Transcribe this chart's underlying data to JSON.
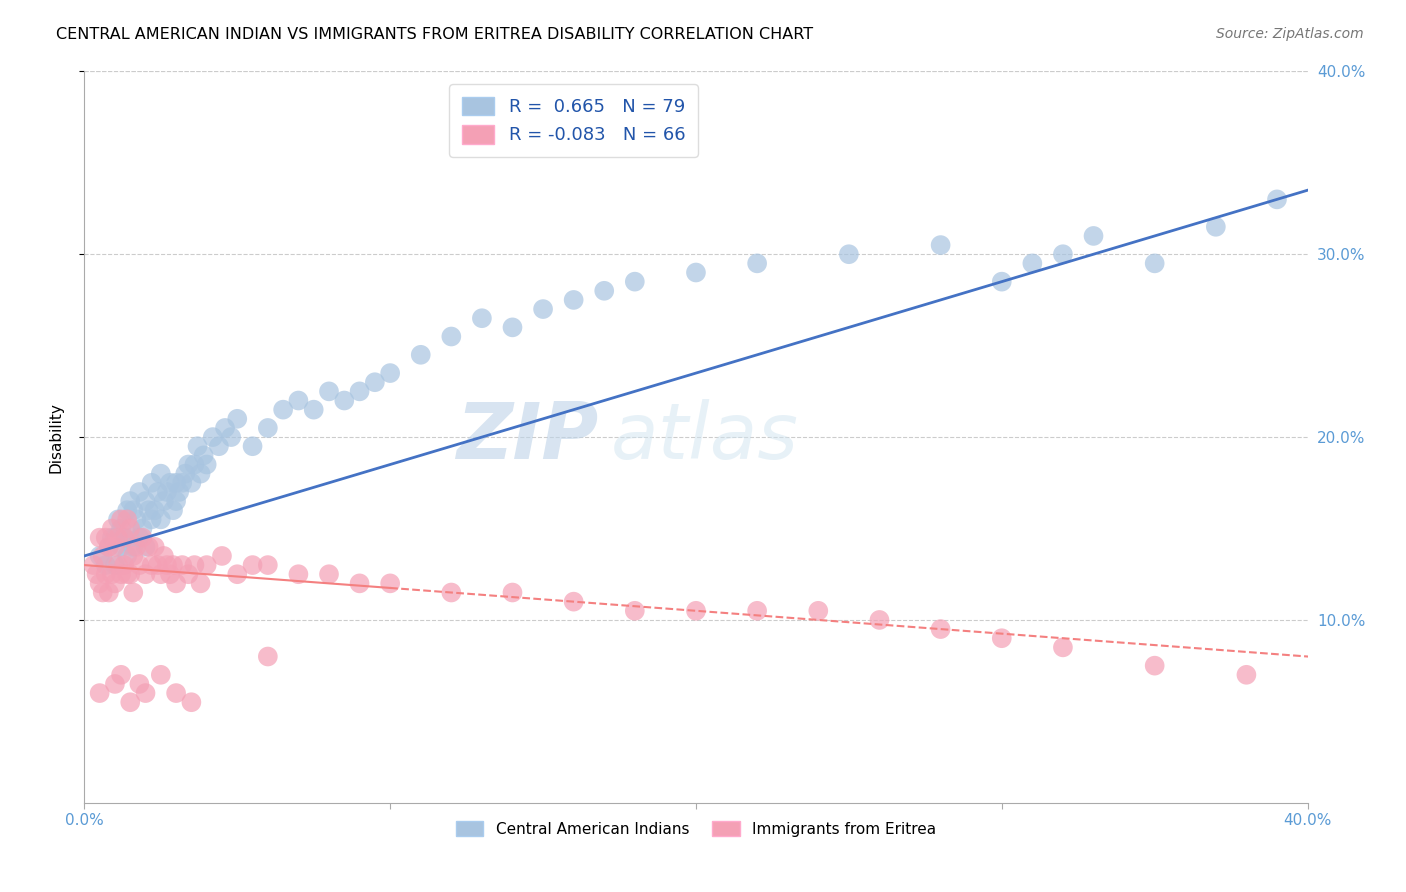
{
  "title": "CENTRAL AMERICAN INDIAN VS IMMIGRANTS FROM ERITREA DISABILITY CORRELATION CHART",
  "source": "Source: ZipAtlas.com",
  "ylabel": "Disability",
  "xlim": [
    0.0,
    0.4
  ],
  "ylim": [
    0.0,
    0.4
  ],
  "xtick_vals": [
    0.0,
    0.1,
    0.2,
    0.3,
    0.4
  ],
  "xtick_labels": [
    "0.0%",
    "",
    "",
    "",
    "40.0%"
  ],
  "ytick_vals": [
    0.1,
    0.2,
    0.3,
    0.4
  ],
  "right_ytick_labels": [
    "10.0%",
    "20.0%",
    "30.0%",
    "40.0%"
  ],
  "blue_R": 0.665,
  "blue_N": 79,
  "pink_R": -0.083,
  "pink_N": 66,
  "blue_color": "#A8C4E0",
  "pink_color": "#F4A0B5",
  "blue_line_color": "#4472C4",
  "pink_line_color": "#F48080",
  "legend_label_blue": "Central American Indians",
  "legend_label_pink": "Immigrants from Eritrea",
  "watermark_zip": "ZIP",
  "watermark_atlas": "atlas",
  "blue_scatter_x": [
    0.005,
    0.007,
    0.008,
    0.009,
    0.01,
    0.01,
    0.011,
    0.012,
    0.012,
    0.013,
    0.014,
    0.014,
    0.015,
    0.015,
    0.016,
    0.016,
    0.017,
    0.018,
    0.018,
    0.019,
    0.02,
    0.02,
    0.021,
    0.022,
    0.022,
    0.023,
    0.024,
    0.025,
    0.025,
    0.026,
    0.027,
    0.028,
    0.029,
    0.03,
    0.03,
    0.031,
    0.032,
    0.033,
    0.034,
    0.035,
    0.036,
    0.037,
    0.038,
    0.039,
    0.04,
    0.042,
    0.044,
    0.046,
    0.048,
    0.05,
    0.055,
    0.06,
    0.065,
    0.07,
    0.075,
    0.08,
    0.085,
    0.09,
    0.095,
    0.1,
    0.11,
    0.12,
    0.13,
    0.14,
    0.15,
    0.16,
    0.17,
    0.18,
    0.2,
    0.22,
    0.25,
    0.28,
    0.3,
    0.31,
    0.32,
    0.33,
    0.35,
    0.37,
    0.39
  ],
  "blue_scatter_y": [
    0.135,
    0.13,
    0.14,
    0.145,
    0.13,
    0.145,
    0.155,
    0.14,
    0.15,
    0.145,
    0.135,
    0.16,
    0.145,
    0.165,
    0.14,
    0.16,
    0.155,
    0.145,
    0.17,
    0.15,
    0.14,
    0.165,
    0.16,
    0.155,
    0.175,
    0.16,
    0.17,
    0.155,
    0.18,
    0.165,
    0.17,
    0.175,
    0.16,
    0.165,
    0.175,
    0.17,
    0.175,
    0.18,
    0.185,
    0.175,
    0.185,
    0.195,
    0.18,
    0.19,
    0.185,
    0.2,
    0.195,
    0.205,
    0.2,
    0.21,
    0.195,
    0.205,
    0.215,
    0.22,
    0.215,
    0.225,
    0.22,
    0.225,
    0.23,
    0.235,
    0.245,
    0.255,
    0.265,
    0.26,
    0.27,
    0.275,
    0.28,
    0.285,
    0.29,
    0.295,
    0.3,
    0.305,
    0.285,
    0.295,
    0.3,
    0.31,
    0.295,
    0.315,
    0.33
  ],
  "pink_scatter_x": [
    0.003,
    0.004,
    0.005,
    0.005,
    0.006,
    0.006,
    0.007,
    0.007,
    0.008,
    0.008,
    0.009,
    0.009,
    0.01,
    0.01,
    0.011,
    0.011,
    0.012,
    0.012,
    0.013,
    0.013,
    0.014,
    0.014,
    0.015,
    0.015,
    0.016,
    0.016,
    0.017,
    0.018,
    0.019,
    0.02,
    0.021,
    0.022,
    0.023,
    0.024,
    0.025,
    0.026,
    0.027,
    0.028,
    0.029,
    0.03,
    0.032,
    0.034,
    0.036,
    0.038,
    0.04,
    0.045,
    0.05,
    0.055,
    0.06,
    0.07,
    0.08,
    0.09,
    0.1,
    0.12,
    0.14,
    0.16,
    0.18,
    0.2,
    0.22,
    0.24,
    0.26,
    0.28,
    0.3,
    0.32,
    0.35,
    0.38
  ],
  "pink_scatter_y": [
    0.13,
    0.125,
    0.145,
    0.12,
    0.135,
    0.115,
    0.145,
    0.125,
    0.14,
    0.115,
    0.15,
    0.125,
    0.14,
    0.12,
    0.145,
    0.13,
    0.155,
    0.125,
    0.145,
    0.13,
    0.155,
    0.125,
    0.15,
    0.125,
    0.135,
    0.115,
    0.14,
    0.13,
    0.145,
    0.125,
    0.14,
    0.13,
    0.14,
    0.13,
    0.125,
    0.135,
    0.13,
    0.125,
    0.13,
    0.12,
    0.13,
    0.125,
    0.13,
    0.12,
    0.13,
    0.135,
    0.125,
    0.13,
    0.13,
    0.125,
    0.125,
    0.12,
    0.12,
    0.115,
    0.115,
    0.11,
    0.105,
    0.105,
    0.105,
    0.105,
    0.1,
    0.095,
    0.09,
    0.085,
    0.075,
    0.07
  ],
  "pink_low_outliers_x": [
    0.005,
    0.01,
    0.012,
    0.015,
    0.018,
    0.02,
    0.025,
    0.03,
    0.035,
    0.06
  ],
  "pink_low_outliers_y": [
    0.06,
    0.065,
    0.07,
    0.055,
    0.065,
    0.06,
    0.07,
    0.06,
    0.055,
    0.08
  ]
}
